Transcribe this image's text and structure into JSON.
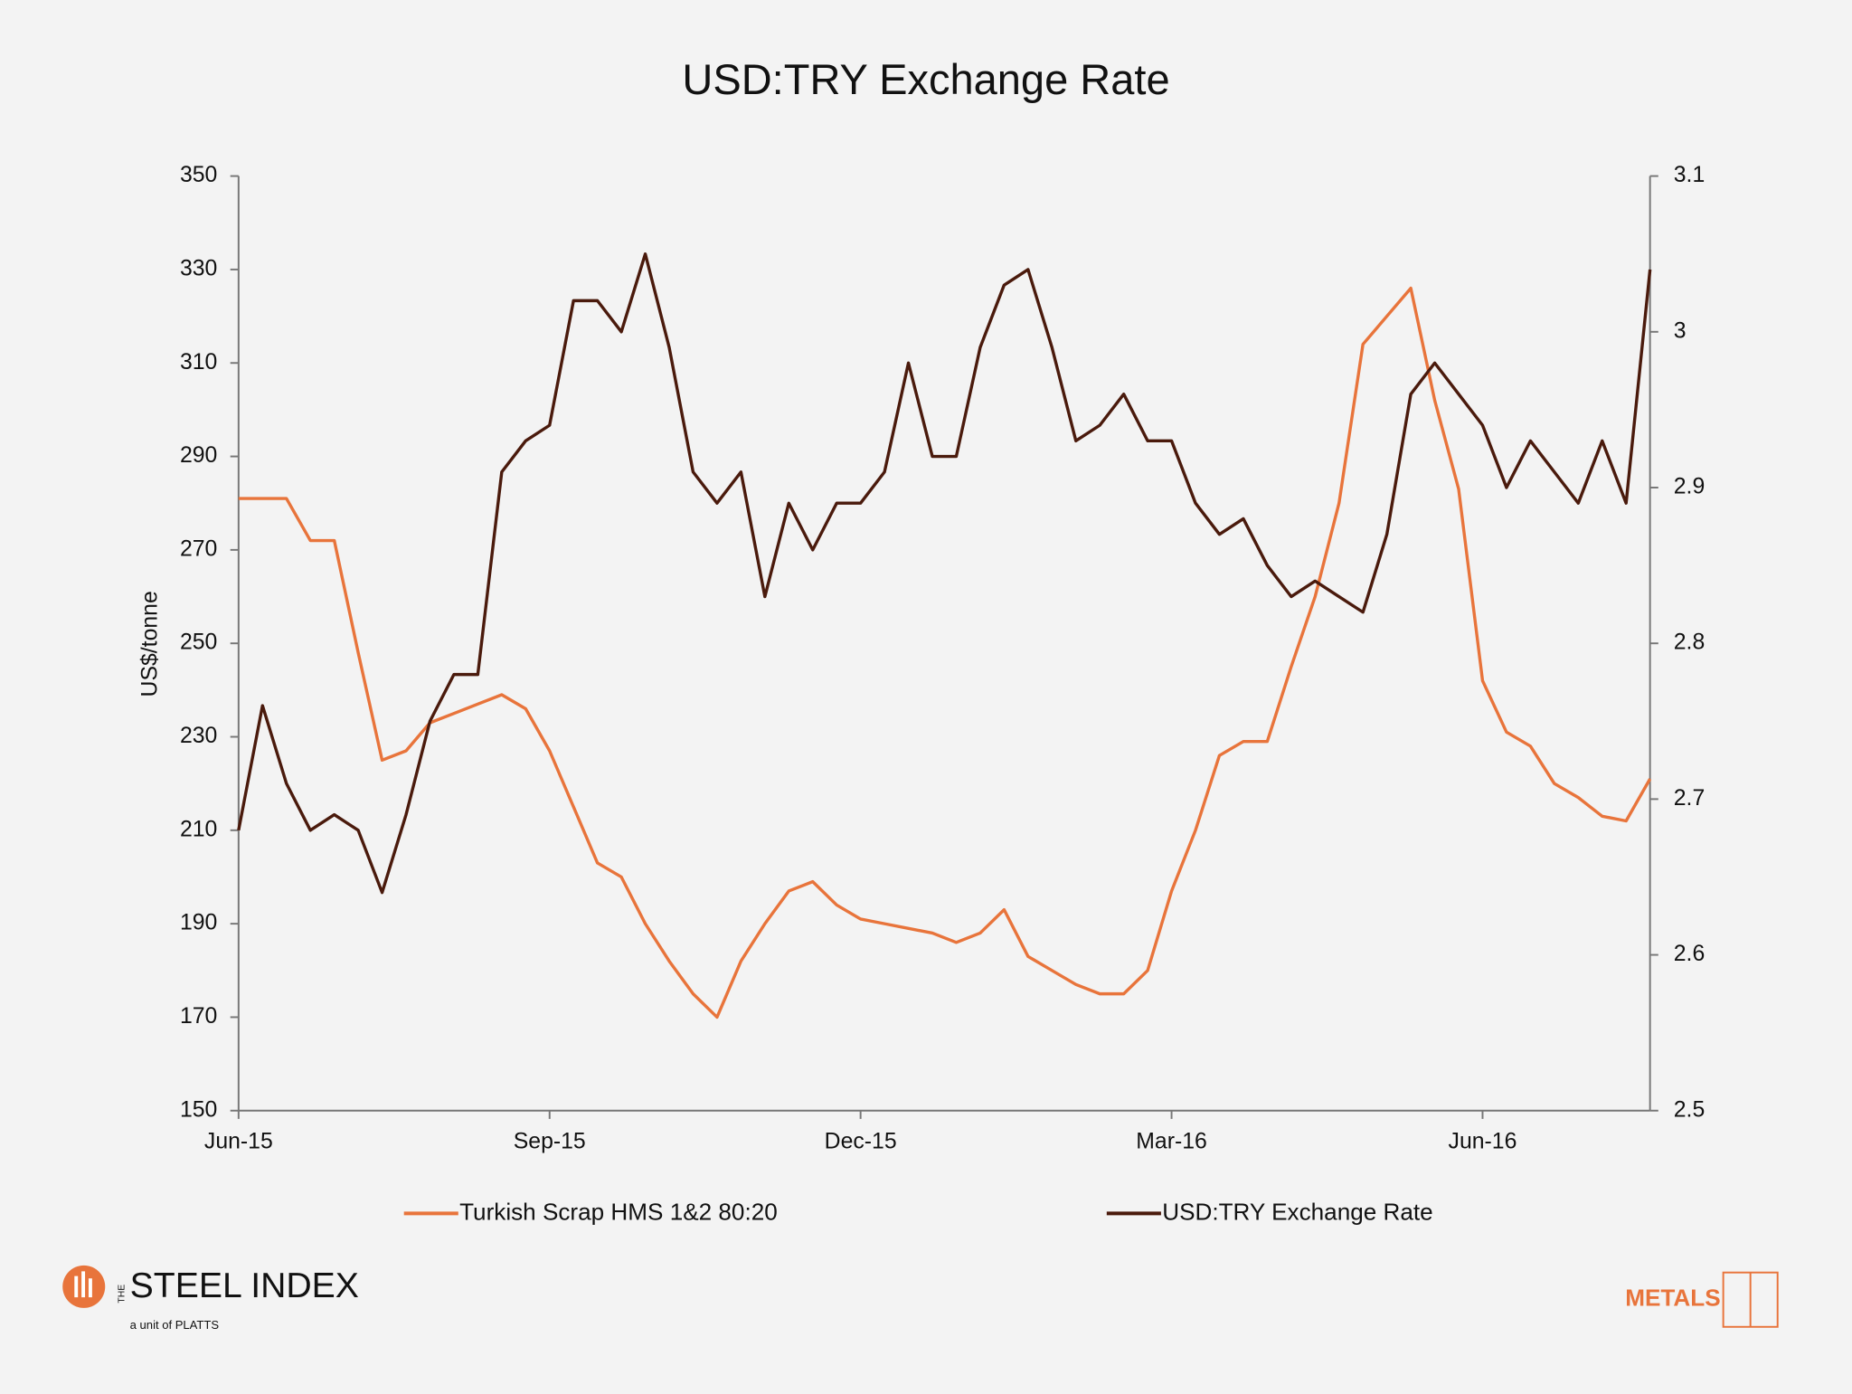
{
  "chart_data": {
    "type": "line",
    "title": "USD:TRY Exchange Rate",
    "y_label": "US$/tonne",
    "categories": [
      "Jun-15",
      null,
      null,
      null,
      null,
      null,
      null,
      null,
      null,
      null,
      null,
      null,
      null,
      "Sep-15",
      null,
      null,
      null,
      null,
      null,
      null,
      null,
      null,
      null,
      null,
      null,
      null,
      "Dec-15",
      null,
      null,
      null,
      null,
      null,
      null,
      null,
      null,
      null,
      null,
      null,
      null,
      "Mar-16",
      null,
      null,
      null,
      null,
      null,
      null,
      null,
      null,
      null,
      null,
      null,
      null,
      "Jun-16",
      null,
      null,
      null,
      null,
      null,
      null,
      null
    ],
    "series": [
      {
        "name": "Turkish Scrap HMS 1&2 80:20",
        "color": "#e8743b",
        "axis": "y",
        "values": [
          281,
          281,
          281,
          272,
          272,
          248,
          225,
          227,
          233,
          235,
          237,
          239,
          236,
          227,
          215,
          203,
          200,
          190,
          182,
          175,
          170,
          182,
          190,
          197,
          199,
          194,
          191,
          190,
          189,
          188,
          186,
          188,
          193,
          183,
          180,
          177,
          175,
          175,
          180,
          197,
          210,
          226,
          229,
          229,
          245,
          260,
          280,
          314,
          320,
          326,
          302,
          283,
          242,
          231,
          228,
          220,
          217,
          213,
          212,
          221
        ]
      },
      {
        "name": "USD:TRY Exchange Rate",
        "color": "#4a1a0c",
        "axis": "y2",
        "values": [
          2.68,
          2.76,
          2.71,
          2.68,
          2.69,
          2.68,
          2.64,
          2.69,
          2.75,
          2.78,
          2.78,
          2.91,
          2.93,
          2.94,
          3.02,
          3.02,
          3.0,
          3.05,
          2.99,
          2.91,
          2.89,
          2.91,
          2.83,
          2.89,
          2.86,
          2.89,
          2.89,
          2.91,
          2.98,
          2.92,
          2.92,
          2.99,
          3.03,
          3.04,
          2.99,
          2.93,
          2.94,
          2.96,
          2.93,
          2.93,
          2.89,
          2.87,
          2.88,
          2.85,
          2.83,
          2.84,
          2.83,
          2.82,
          2.87,
          2.96,
          2.98,
          2.96,
          2.94,
          2.9,
          2.93,
          2.91,
          2.89,
          2.93,
          2.89,
          3.04
        ]
      }
    ],
    "ylim": [
      150,
      350
    ],
    "yticks": [
      150,
      170,
      190,
      210,
      230,
      250,
      270,
      290,
      310,
      330,
      350
    ],
    "y2lim": [
      2.5,
      3.1
    ],
    "y2ticks": [
      2.5,
      2.6,
      2.7,
      2.8,
      2.9,
      3,
      3.1
    ],
    "legend": "bottom",
    "grid": false
  },
  "brand": {
    "the": "THE",
    "name": "STEEL INDEX",
    "tagline": "a unit of PLATTS",
    "metals": "METALS"
  }
}
